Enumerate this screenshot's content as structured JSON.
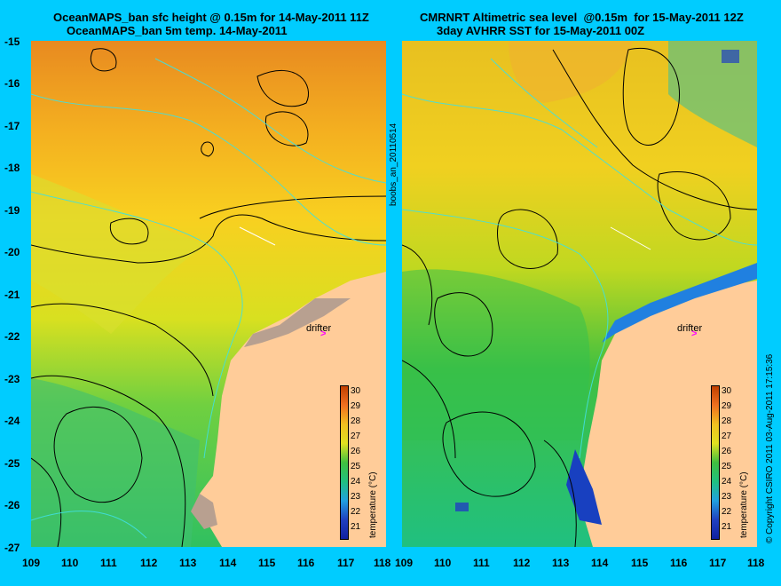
{
  "panels": [
    {
      "title_line1": "OceanMAPS_ban sfc height @ 0.15m for 14-May-2011 11Z",
      "title_line2": "OceanMAPS_ban 5m temp. 14-May-2011"
    },
    {
      "title_line1": "CMRNRT Altimetric sea level  @0.15m  for 15-May-2011 12Z",
      "title_line2": "3day AVHRR SST for 15-May-2011 00Z"
    }
  ],
  "lat_ticks": [
    "-15",
    "-16",
    "-17",
    "-18",
    "-19",
    "-20",
    "-21",
    "-22",
    "-23",
    "-24",
    "-25",
    "-26",
    "-27"
  ],
  "lon_ticks": [
    "109",
    "110",
    "111",
    "112",
    "113",
    "114",
    "115",
    "116",
    "117",
    "118"
  ],
  "drifter_label": "drifter",
  "colorbar": {
    "label": "temperature (°C)",
    "ticks": [
      "30",
      "29",
      "28",
      "27",
      "26",
      "25",
      "24",
      "23",
      "22",
      "21"
    ]
  },
  "side_id_text": "boobs_an_20110514",
  "copyright_text": "© Copyright CSIRO 2011   03-Aug-2011 17:15:36",
  "colors": {
    "background": "#00ccff",
    "land": "#ffcc99",
    "drifter": "#ff00ff"
  }
}
